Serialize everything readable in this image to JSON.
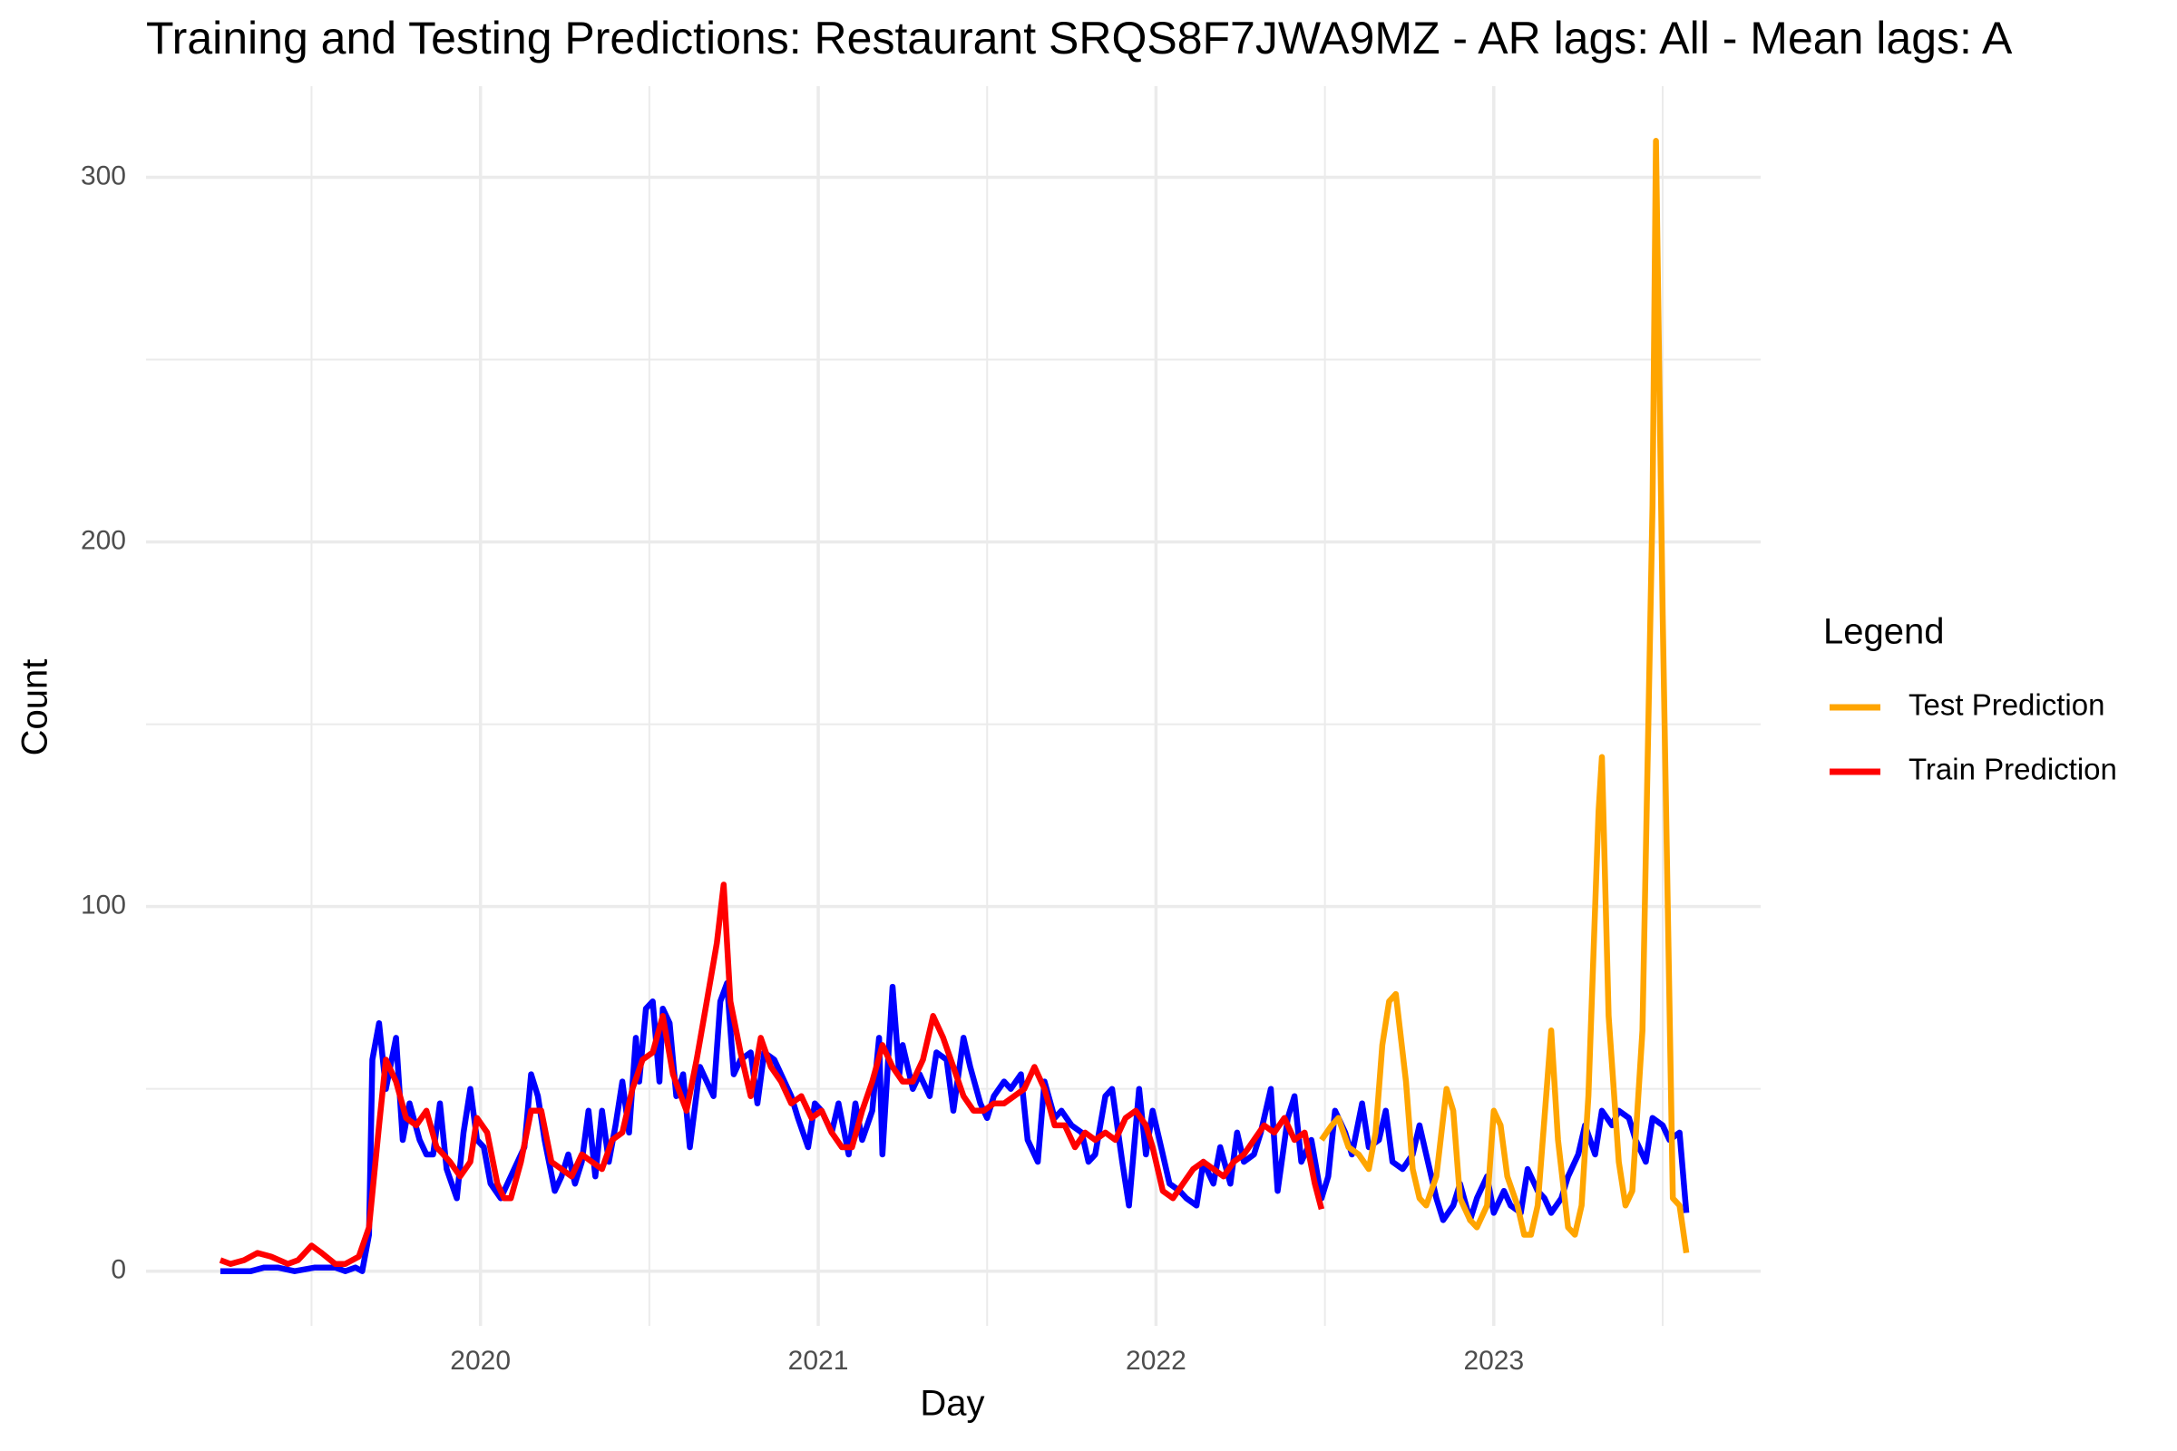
{
  "chart_data": {
    "type": "line",
    "title": "Training and Testing Predictions: Restaurant SRQS8F7JWA9MZ - AR lags: All - Mean lags: A",
    "x_label": "Day",
    "y_label": "Count",
    "legend_title": "Legend",
    "legend_position": "right",
    "grid": true,
    "xlim": [
      2019.01,
      2023.79
    ],
    "xticks": [
      2020,
      2021,
      2022,
      2023
    ],
    "ylim": [
      -15,
      325
    ],
    "yticks": [
      0,
      100,
      200,
      300
    ],
    "series": [
      {
        "color": "#0000ff",
        "x": [
          2019.23,
          2019.32,
          2019.36,
          2019.4,
          2019.45,
          2019.51,
          2019.57,
          2019.6,
          2019.63,
          2019.65,
          2019.67,
          2019.68,
          2019.7,
          2019.72,
          2019.75,
          2019.77,
          2019.79,
          2019.82,
          2019.84,
          2019.86,
          2019.88,
          2019.9,
          2019.93,
          2019.95,
          2019.97,
          2019.99,
          2020.01,
          2020.03,
          2020.06,
          2020.1,
          2020.13,
          2020.15,
          2020.17,
          2020.19,
          2020.22,
          2020.24,
          2020.26,
          2020.28,
          2020.3,
          2020.32,
          2020.34,
          2020.36,
          2020.38,
          2020.4,
          2020.42,
          2020.44,
          2020.46,
          2020.47,
          2020.49,
          2020.51,
          2020.53,
          2020.54,
          2020.56,
          2020.58,
          2020.6,
          2020.62,
          2020.65,
          2020.67,
          2020.69,
          2020.71,
          2020.73,
          2020.75,
          2020.77,
          2020.8,
          2020.82,
          2020.84,
          2020.87,
          2020.89,
          2020.92,
          2020.94,
          2020.97,
          2020.99,
          2021.01,
          2021.04,
          2021.06,
          2021.09,
          2021.11,
          2021.13,
          2021.16,
          2021.18,
          2021.19,
          2021.22,
          2021.24,
          2021.25,
          2021.28,
          2021.3,
          2021.33,
          2021.35,
          2021.38,
          2021.4,
          2021.43,
          2021.45,
          2021.48,
          2021.5,
          2021.52,
          2021.55,
          2021.57,
          2021.6,
          2021.62,
          2021.65,
          2021.67,
          2021.7,
          2021.72,
          2021.75,
          2021.78,
          2021.8,
          2021.82,
          2021.85,
          2021.87,
          2021.9,
          2021.92,
          2021.95,
          2021.97,
          2021.99,
          2022.02,
          2022.04,
          2022.07,
          2022.09,
          2022.12,
          2022.14,
          2022.17,
          2022.19,
          2022.22,
          2022.24,
          2022.26,
          2022.29,
          2022.31,
          2022.34,
          2022.36,
          2022.39,
          2022.41,
          2022.43,
          2022.46,
          2022.49,
          2022.51,
          2022.53,
          2022.56,
          2022.58,
          2022.61,
          2022.63,
          2022.66,
          2022.68,
          2022.7,
          2022.73,
          2022.76,
          2022.78,
          2022.8,
          2022.83,
          2022.85,
          2022.88,
          2022.9,
          2022.93,
          2022.95,
          2022.98,
          2023.0,
          2023.03,
          2023.05,
          2023.08,
          2023.1,
          2023.13,
          2023.15,
          2023.17,
          2023.2,
          2023.22,
          2023.25,
          2023.27,
          2023.3,
          2023.32,
          2023.35,
          2023.37,
          2023.4,
          2023.42,
          2023.45,
          2023.47,
          2023.5,
          2023.52,
          2023.55,
          2023.57
        ],
        "values": [
          0,
          0,
          1,
          1,
          0,
          1,
          1,
          0,
          1,
          0,
          10,
          58,
          68,
          50,
          64,
          36,
          46,
          36,
          32,
          32,
          46,
          28,
          20,
          38,
          50,
          36,
          34,
          24,
          20,
          28,
          34,
          54,
          48,
          36,
          22,
          26,
          32,
          24,
          30,
          44,
          26,
          44,
          30,
          40,
          52,
          38,
          64,
          52,
          72,
          74,
          52,
          72,
          68,
          48,
          54,
          34,
          56,
          52,
          48,
          74,
          79,
          54,
          58,
          60,
          46,
          60,
          58,
          54,
          48,
          42,
          34,
          46,
          44,
          38,
          46,
          32,
          46,
          36,
          44,
          64,
          32,
          78,
          54,
          62,
          50,
          54,
          48,
          60,
          58,
          44,
          64,
          56,
          46,
          42,
          48,
          52,
          50,
          54,
          36,
          30,
          52,
          42,
          44,
          40,
          38,
          30,
          32,
          48,
          50,
          30,
          18,
          50,
          32,
          44,
          32,
          24,
          22,
          20,
          18,
          30,
          24,
          34,
          24,
          38,
          30,
          32,
          38,
          50,
          22,
          42,
          48,
          30,
          36,
          20,
          26,
          44,
          38,
          32,
          46,
          34,
          36,
          44,
          30,
          28,
          32,
          40,
          32,
          20,
          14,
          18,
          24,
          14,
          20,
          26,
          16,
          22,
          18,
          16,
          28,
          22,
          20,
          16,
          20,
          26,
          32,
          40,
          32,
          44,
          40,
          44,
          42,
          36,
          30,
          42,
          40,
          36,
          38,
          16
        ]
      },
      {
        "name": "Test Prediction",
        "color": "#ffa500",
        "x": [
          2022.49,
          2022.52,
          2022.54,
          2022.57,
          2022.6,
          2022.63,
          2022.65,
          2022.67,
          2022.69,
          2022.71,
          2022.74,
          2022.76,
          2022.78,
          2022.8,
          2022.83,
          2022.86,
          2022.88,
          2022.9,
          2022.93,
          2022.95,
          2022.98,
          2023.0,
          2023.02,
          2023.04,
          2023.07,
          2023.09,
          2023.11,
          2023.13,
          2023.16,
          2023.17,
          2023.19,
          2023.22,
          2023.24,
          2023.26,
          2023.28,
          2023.31,
          2023.32,
          2023.34,
          2023.37,
          2023.39,
          2023.41,
          2023.44,
          2023.47,
          2023.48,
          2023.5,
          2023.53,
          2023.55,
          2023.57
        ],
        "values": [
          36,
          40,
          42,
          34,
          32,
          28,
          38,
          62,
          74,
          76,
          52,
          28,
          20,
          18,
          26,
          50,
          44,
          20,
          14,
          12,
          18,
          44,
          40,
          26,
          18,
          10,
          10,
          18,
          54,
          66,
          36,
          12,
          10,
          18,
          48,
          126,
          141,
          70,
          30,
          18,
          22,
          66,
          210,
          310,
          180,
          20,
          18,
          5
        ]
      },
      {
        "name": "Train Prediction",
        "color": "#ff0000",
        "x": [
          2019.23,
          2019.26,
          2019.3,
          2019.34,
          2019.38,
          2019.43,
          2019.46,
          2019.5,
          2019.53,
          2019.57,
          2019.6,
          2019.64,
          2019.67,
          2019.7,
          2019.72,
          2019.75,
          2019.78,
          2019.81,
          2019.84,
          2019.87,
          2019.91,
          2019.94,
          2019.97,
          2019.99,
          2020.02,
          2020.05,
          2020.07,
          2020.09,
          2020.12,
          2020.15,
          2020.18,
          2020.21,
          2020.24,
          2020.27,
          2020.3,
          2020.33,
          2020.36,
          2020.39,
          2020.42,
          2020.45,
          2020.48,
          2020.51,
          2020.54,
          2020.57,
          2020.61,
          2020.64,
          2020.67,
          2020.7,
          2020.72,
          2020.74,
          2020.77,
          2020.8,
          2020.83,
          2020.86,
          2020.89,
          2020.92,
          2020.95,
          2020.98,
          2021.01,
          2021.04,
          2021.07,
          2021.1,
          2021.13,
          2021.16,
          2021.19,
          2021.22,
          2021.25,
          2021.28,
          2021.31,
          2021.34,
          2021.37,
          2021.4,
          2021.43,
          2021.46,
          2021.49,
          2021.52,
          2021.55,
          2021.58,
          2021.61,
          2021.64,
          2021.67,
          2021.7,
          2021.73,
          2021.76,
          2021.79,
          2021.82,
          2021.85,
          2021.88,
          2021.91,
          2021.94,
          2021.97,
          2021.99,
          2022.02,
          2022.05,
          2022.08,
          2022.11,
          2022.14,
          2022.17,
          2022.2,
          2022.23,
          2022.26,
          2022.29,
          2022.32,
          2022.35,
          2022.38,
          2022.41,
          2022.44,
          2022.47,
          2022.49
        ],
        "values": [
          3,
          2,
          3,
          5,
          4,
          2,
          3,
          7,
          5,
          2,
          2,
          4,
          12,
          40,
          58,
          52,
          42,
          40,
          44,
          34,
          30,
          26,
          30,
          42,
          38,
          24,
          20,
          20,
          30,
          44,
          44,
          30,
          28,
          26,
          32,
          30,
          28,
          36,
          38,
          50,
          58,
          60,
          70,
          54,
          44,
          58,
          74,
          90,
          106,
          74,
          60,
          48,
          64,
          56,
          52,
          46,
          48,
          42,
          44,
          38,
          34,
          34,
          44,
          52,
          62,
          56,
          52,
          52,
          58,
          70,
          64,
          56,
          48,
          44,
          44,
          46,
          46,
          48,
          50,
          56,
          50,
          40,
          40,
          34,
          38,
          36,
          38,
          36,
          42,
          44,
          40,
          34,
          22,
          20,
          24,
          28,
          30,
          28,
          26,
          30,
          32,
          36,
          40,
          38,
          42,
          36,
          38,
          24,
          17
        ]
      }
    ]
  }
}
